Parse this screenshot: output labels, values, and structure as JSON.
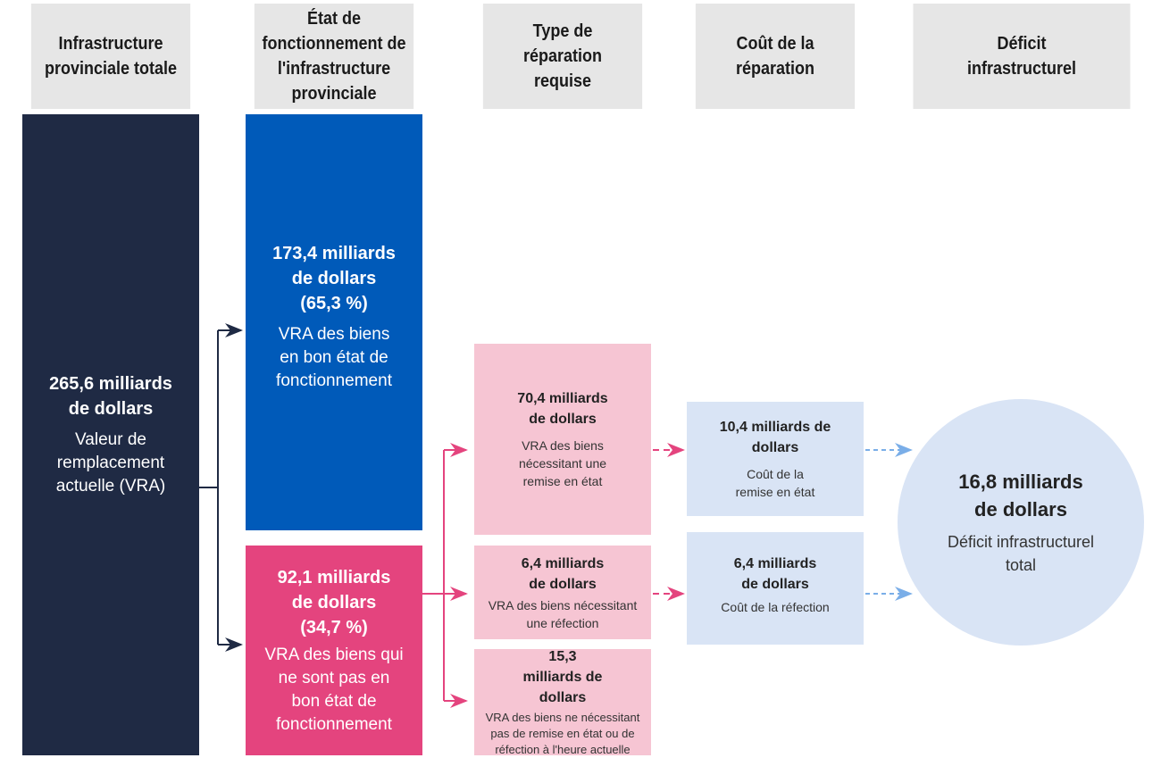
{
  "headers": [
    "Infrastructure provinciale totale",
    "État de fonctionnement de l'infrastructure provinciale",
    "Type de réparation requise",
    "Coût de la réparation",
    "Déficit infrastructurel"
  ],
  "total": {
    "value": "265,6 milliards de dollars",
    "label": "Valeur de remplacement actuelle (VRA)"
  },
  "good": {
    "value": "173,4 milliards de dollars",
    "pct": "(65,3 %)",
    "label": "VRA des biens en bon état de fonctionnement"
  },
  "bad": {
    "value": "92,1 milliards de dollars",
    "pct": "(34,7 %)",
    "label": "VRA des biens qui ne sont pas en bon état de fonctionnement"
  },
  "repair": [
    {
      "value": "70,4 milliards de dollars",
      "label": "VRA des biens nécessitant une remise en état"
    },
    {
      "value": "6,4 milliards de dollars",
      "label": "VRA des biens nécessitant une réfection"
    },
    {
      "value": "15,3 milliards de dollars",
      "label": "VRA des biens ne nécessitant pas de remise en état ou de réfection à l'heure actuelle"
    }
  ],
  "cost": [
    {
      "value": "10,4 milliards de dollars",
      "label": "Coût de la remise en état"
    },
    {
      "value": "6,4 milliards de dollars",
      "label": "Coût de la réfection"
    }
  ],
  "deficit": {
    "value": "16,8 milliards de dollars",
    "label": "Déficit infrastructurel total"
  },
  "colors": {
    "dark": "#1f2a44",
    "blue": "#005ab9",
    "pink": "#e4447e",
    "light_pink": "#f6c5d3",
    "light_blue": "#d9e4f5",
    "header": "#e6e6e6"
  }
}
